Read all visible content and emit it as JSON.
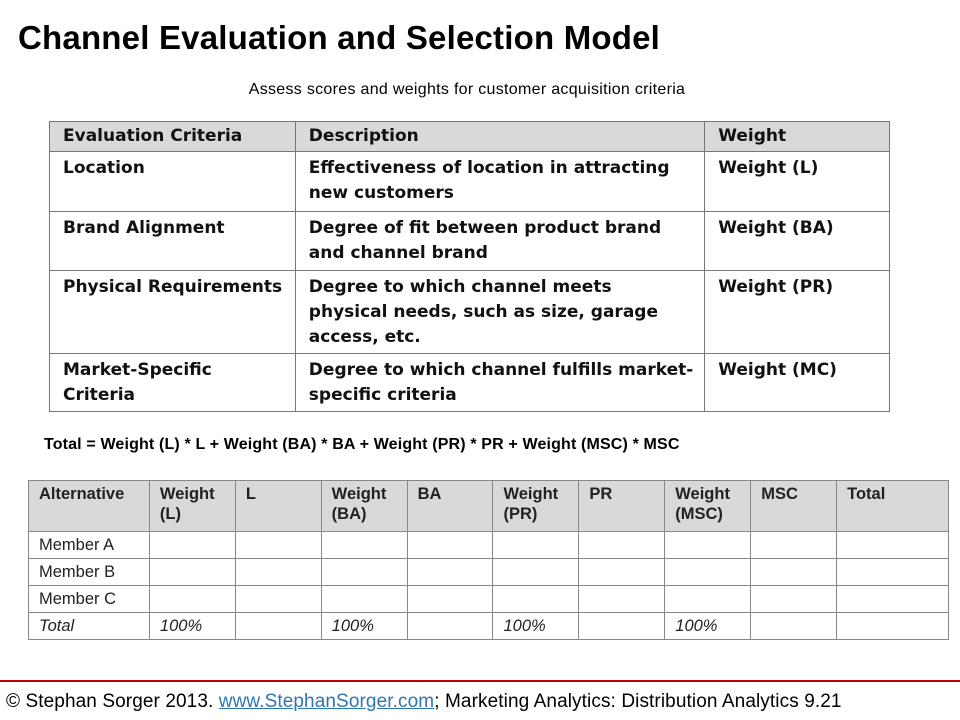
{
  "title": "Channel Evaluation and Selection Model",
  "subtitle": "Assess scores and weights for customer acquisition criteria",
  "criteria_table": {
    "headers": [
      "Evaluation Criteria",
      "Description",
      "Weight"
    ],
    "rows": [
      {
        "criteria": "Location",
        "description": "Effectiveness of location in attracting new customers",
        "weight": "Weight (L)"
      },
      {
        "criteria": "Brand Alignment",
        "description": "Degree of fit between product brand and channel brand",
        "weight": "Weight (BA)"
      },
      {
        "criteria": "Physical Requirements",
        "description": "Degree to which channel meets physical needs, such as size, garage access, etc.",
        "weight": "Weight (PR)"
      },
      {
        "criteria": "Market-Specific Criteria",
        "description": "Degree to which channel fulfills market-specific criteria",
        "weight": "Weight (MC)"
      }
    ]
  },
  "formula": "Total = Weight (L) * L + Weight (BA) * BA + Weight (PR) * PR + Weight (MSC) * MSC",
  "alternatives_table": {
    "headers": [
      "Alternative",
      "Weight (L)",
      "L",
      "Weight (BA)",
      "BA",
      "Weight (PR)",
      "PR",
      "Weight (MSC)",
      "MSC",
      "Total"
    ],
    "rows": [
      [
        "Member A",
        "",
        "",
        "",
        "",
        "",
        "",
        "",
        "",
        ""
      ],
      [
        "Member B",
        "",
        "",
        "",
        "",
        "",
        "",
        "",
        "",
        ""
      ],
      [
        "Member C",
        "",
        "",
        "",
        "",
        "",
        "",
        "",
        "",
        ""
      ],
      [
        "Total",
        "100%",
        "",
        "100%",
        "",
        "100%",
        "",
        "100%",
        "",
        ""
      ]
    ]
  },
  "footer": {
    "prefix": "© Stephan Sorger 2013. ",
    "link_text": "www.StephanSorger.com",
    "suffix": "; Marketing Analytics: Distribution Analytics 9.21"
  },
  "colors": {
    "header_fill": "#d9d9d9",
    "footer_rule": "#c00000",
    "link": "#2e75b6"
  }
}
